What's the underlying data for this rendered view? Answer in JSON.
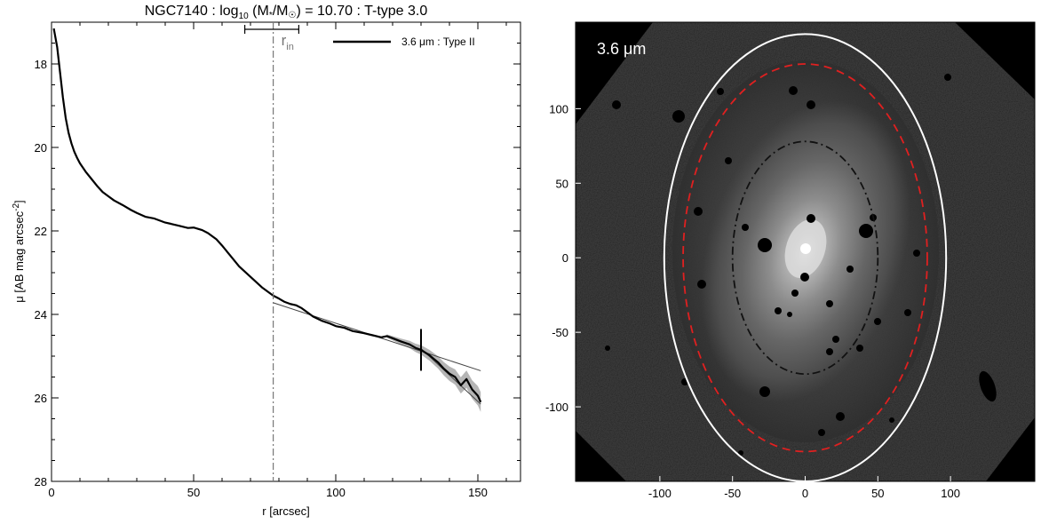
{
  "figure": {
    "title_prefix": "NGC7140 : log",
    "title_sub": "10",
    "title_mid": " (M",
    "title_star": "*",
    "title_slash": "/M",
    "title_sun": "☉",
    "title_suffix": ") = 10.70 : T-type 3.0"
  },
  "chart_data": [
    {
      "type": "line",
      "panel": "surface-brightness-profile",
      "title": "NGC7140 : log10 (M*/M☉) = 10.70 : T-type 3.0",
      "xlabel": "r [arcsec]",
      "ylabel": "μ [AB mag arcsec^-2]",
      "ylabel_parts": {
        "main": "μ [AB mag arcsec",
        "sup": "-2",
        "close": "]"
      },
      "xlim": [
        0,
        165
      ],
      "ylim": [
        28,
        17
      ],
      "y_inverted": true,
      "x_ticks": [
        0,
        50,
        100,
        150
      ],
      "y_ticks": [
        18,
        20,
        22,
        24,
        26,
        28
      ],
      "legend": {
        "position": "top-right",
        "label": "3.6 μm : Type II"
      },
      "series": [
        {
          "name": "3.6 μm : Type II",
          "color": "#000000",
          "x": [
            0.8,
            2,
            3,
            4,
            5,
            6,
            7,
            8,
            9,
            10,
            12,
            14,
            16,
            18,
            20,
            22,
            25,
            28,
            30,
            33,
            36,
            38,
            40,
            42,
            45,
            48,
            50,
            53,
            55,
            58,
            60,
            63,
            66,
            70,
            74,
            78,
            80,
            82,
            84,
            86,
            88,
            90,
            92,
            95,
            98,
            100,
            103,
            106,
            110,
            113,
            116,
            118,
            120,
            123,
            126,
            128,
            130,
            133,
            136,
            138,
            140,
            142,
            144,
            146,
            148,
            150,
            151
          ],
          "y": [
            17.15,
            17.6,
            18.2,
            18.8,
            19.3,
            19.65,
            19.9,
            20.1,
            20.25,
            20.38,
            20.58,
            20.75,
            20.92,
            21.07,
            21.17,
            21.27,
            21.38,
            21.5,
            21.57,
            21.66,
            21.7,
            21.75,
            21.8,
            21.83,
            21.88,
            21.93,
            21.92,
            21.98,
            22.05,
            22.2,
            22.35,
            22.6,
            22.85,
            23.1,
            23.35,
            23.55,
            23.62,
            23.7,
            23.75,
            23.78,
            23.85,
            23.95,
            24.05,
            24.15,
            24.22,
            24.28,
            24.32,
            24.4,
            24.45,
            24.5,
            24.55,
            24.52,
            24.57,
            24.65,
            24.72,
            24.8,
            24.85,
            24.98,
            25.15,
            25.3,
            25.42,
            25.5,
            25.7,
            25.55,
            25.8,
            25.95,
            26.1
          ]
        },
        {
          "name": "",
          "color": "#444444",
          "x": [
            78,
            151
          ],
          "y": [
            23.72,
            25.35
          ]
        },
        {
          "name": "",
          "color": "#444444",
          "x": [
            130,
            151
          ],
          "y": [
            24.82,
            26.15
          ]
        }
      ],
      "markers": {
        "r_in": 78,
        "r_in_error": [
          68,
          87
        ],
        "r_in_label": "r",
        "r_in_sub": "in",
        "outer_marker_x": 130
      }
    },
    {
      "type": "heatmap",
      "panel": "image-3.6um",
      "label": "3.6 μm",
      "x_ticks": [
        -100,
        -50,
        0,
        50,
        100
      ],
      "y_ticks": [
        100,
        50,
        0,
        -50,
        -100
      ],
      "xlim": [
        -158,
        158
      ],
      "ylim": [
        -150,
        158
      ],
      "ellipses": [
        {
          "name": "outer-aperture",
          "color": "#ffffff",
          "style": "solid",
          "a": 97,
          "b": 150,
          "cx": 0,
          "cy": 0,
          "angle_deg": 0
        },
        {
          "name": "break-radius",
          "color": "#e02020",
          "style": "dashed",
          "a": 84,
          "b": 130,
          "cx": 0,
          "cy": 0,
          "angle_deg": 0
        },
        {
          "name": "inner-radius",
          "color": "#111111",
          "style": "dash-dot",
          "a": 50,
          "b": 78,
          "cx": 0,
          "cy": 0,
          "angle_deg": 0
        }
      ]
    }
  ]
}
